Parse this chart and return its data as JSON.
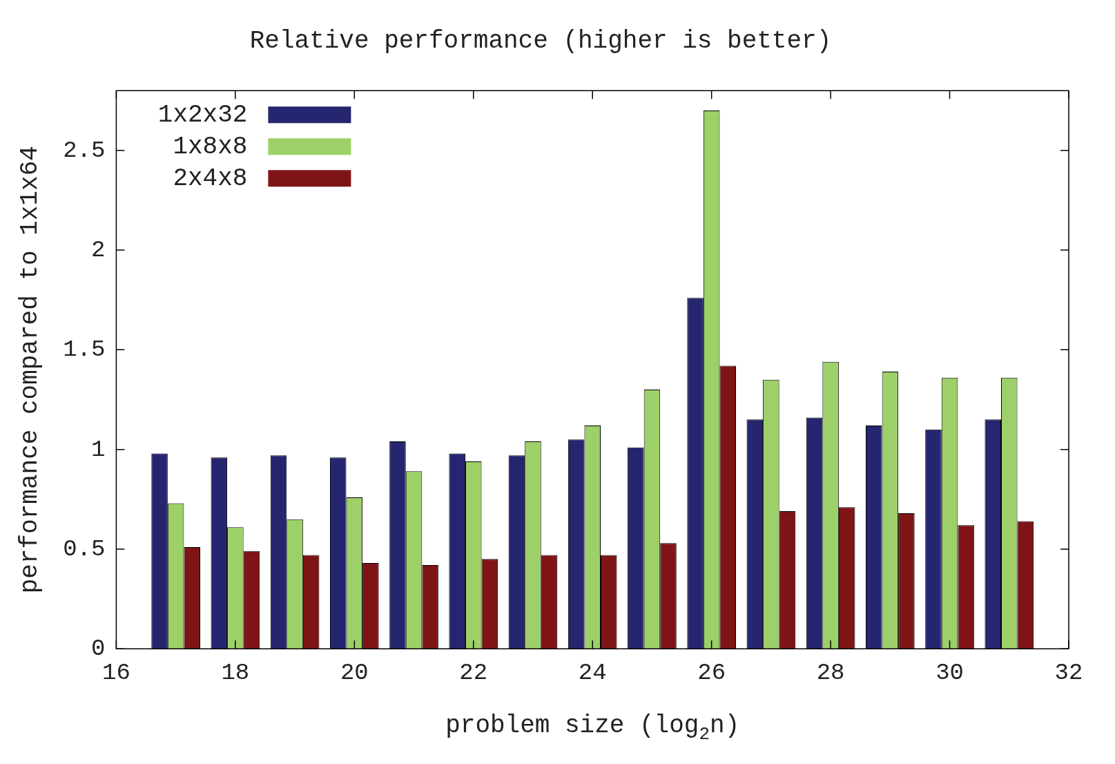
{
  "chart_data": {
    "type": "bar",
    "title": "Relative performance (higher is better)",
    "xlabel": "problem size (log$_{2}$n)",
    "ylabel": "performance compared to 1x1x64",
    "x": [
      17,
      18,
      19,
      20,
      21,
      22,
      23,
      24,
      25,
      26,
      27,
      28,
      29,
      30,
      31
    ],
    "series": [
      {
        "name": "1x2x32",
        "color": "#25266f",
        "values": [
          0.98,
          0.96,
          0.97,
          0.96,
          1.04,
          0.98,
          0.97,
          1.05,
          1.01,
          1.76,
          1.15,
          1.16,
          1.12,
          1.1,
          1.15
        ]
      },
      {
        "name": "1x8x8",
        "color": "#9dd068",
        "values": [
          0.73,
          0.61,
          0.65,
          0.76,
          0.89,
          0.94,
          1.04,
          1.12,
          1.3,
          2.7,
          1.35,
          1.44,
          1.39,
          1.36,
          1.36
        ]
      },
      {
        "name": "2x4x8",
        "color": "#7f1417",
        "values": [
          0.51,
          0.49,
          0.47,
          0.43,
          0.42,
          0.45,
          0.47,
          0.47,
          0.53,
          1.42,
          0.69,
          0.71,
          0.68,
          0.62,
          0.64
        ]
      }
    ],
    "xlim": [
      16,
      32
    ],
    "xticks": [
      16,
      18,
      20,
      22,
      24,
      26,
      28,
      30,
      32
    ],
    "ylim": [
      0,
      2.8
    ],
    "yticks": [
      0,
      0.5,
      1,
      1.5,
      2,
      2.5
    ],
    "grid": false,
    "legend": "top left"
  }
}
